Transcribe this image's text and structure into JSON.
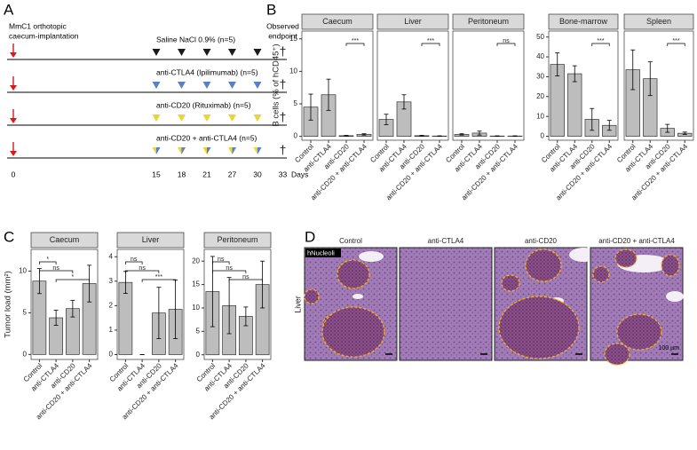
{
  "panel_labels": [
    "A",
    "B",
    "C",
    "D"
  ],
  "timeline": {
    "title_lines": [
      "MmC1 orthotopic",
      "caecum-implantation"
    ],
    "endpoint_lines": [
      "Observed",
      "endpoint"
    ],
    "endpoint_symbol": "†",
    "days": [
      0,
      15,
      18,
      21,
      27,
      30,
      33
    ],
    "days_label": "Days",
    "arrow_color": "#d7191c",
    "rows": [
      {
        "label": "Saline NaCl 0.9% (n=5)",
        "colors": [
          "#1a1a1a"
        ]
      },
      {
        "label": "anti-CTLA4 (Ipilimumab) (n=5)",
        "colors": [
          "#5b7fc7"
        ]
      },
      {
        "label": "anti-CD20 (Rituximab) (n=5)",
        "colors": [
          "#ecd531"
        ]
      },
      {
        "label": "anti-CD20 + anti-CTLA4 (n=5)",
        "colors": [
          "#ecd531",
          "#5b7fc7"
        ]
      }
    ]
  },
  "chart_data": [
    {
      "type": "bar",
      "y_label": "B cells (% of hCD45⁺)",
      "categories": [
        "Control",
        "anti-CTLA4",
        "anti-CD20",
        "anti-CD20 + anti-CTLA4"
      ],
      "bar_color": "#bdbdbd",
      "groups": [
        {
          "ylim": [
            -0.6,
            16.2
          ],
          "yticks": [
            0,
            5,
            10,
            15
          ],
          "facets": [
            {
              "title": "Caecum",
              "values": [
                4.5,
                6.4,
                0.1,
                0.3
              ],
              "errors": [
                2.0,
                2.4,
                0.05,
                0.1
              ],
              "comparisons": [
                {
                  "pair": [
                    2,
                    3
                  ],
                  "label": "***"
                }
              ]
            },
            {
              "title": "Liver",
              "values": [
                2.6,
                5.3,
                0.1,
                0.05
              ],
              "errors": [
                0.8,
                1.1,
                0.05,
                0.03
              ],
              "comparisons": [
                {
                  "pair": [
                    2,
                    3
                  ],
                  "label": "***"
                }
              ]
            },
            {
              "title": "Peritoneum",
              "values": [
                0.3,
                0.5,
                0.05,
                0.05
              ],
              "errors": [
                0.1,
                0.3,
                0.03,
                0.03
              ],
              "comparisons": [
                {
                  "pair": [
                    2,
                    3
                  ],
                  "label": "ns"
                }
              ]
            }
          ]
        },
        {
          "ylim": [
            -2,
            53
          ],
          "yticks": [
            0,
            10,
            20,
            30,
            40,
            50
          ],
          "facets": [
            {
              "title": "Bone-marrow",
              "values": [
                36.2,
                31.5,
                8.5,
                5.5
              ],
              "errors": [
                5.8,
                4.0,
                5.5,
                2.5
              ],
              "comparisons": [
                {
                  "pair": [
                    2,
                    3
                  ],
                  "label": "***"
                }
              ]
            },
            {
              "title": "Spleen",
              "values": [
                33.5,
                29.0,
                4.0,
                1.5
              ],
              "errors": [
                10.0,
                8.5,
                2.0,
                0.6
              ],
              "comparisons": [
                {
                  "pair": [
                    2,
                    3
                  ],
                  "label": "***"
                }
              ]
            }
          ]
        }
      ]
    },
    {
      "type": "bar",
      "y_label": "Tumor load (mm²)",
      "categories": [
        "Control",
        "anti-CTLA4",
        "anti-CD20",
        "anti-CD20 + anti-CTLA4"
      ],
      "bar_color": "#bdbdbd",
      "groups": [
        {
          "ylim": [
            -0.6,
            12.6
          ],
          "yticks": [
            0,
            5,
            10
          ],
          "facets": [
            {
              "title": "Caecum",
              "values": [
                8.8,
                4.4,
                5.5,
                8.5
              ],
              "errors": [
                1.5,
                0.9,
                1.0,
                2.2
              ],
              "comparisons": [
                {
                  "pair": [
                    1,
                    3
                  ],
                  "label": "*"
                },
                {
                  "pair": [
                    0,
                    2
                  ],
                  "label": "ns"
                },
                {
                  "pair": [
                    0,
                    1
                  ],
                  "label": "*"
                }
              ]
            }
          ]
        },
        {
          "ylim": [
            -0.2,
            4.3
          ],
          "yticks": [
            0,
            1,
            2,
            3,
            4
          ],
          "facets": [
            {
              "title": "Liver",
              "values": [
                2.95,
                0,
                1.7,
                1.85
              ],
              "errors": [
                0.45,
                0,
                1.05,
                1.2
              ],
              "comparisons": [
                {
                  "pair": [
                    1,
                    3
                  ],
                  "label": "***"
                },
                {
                  "pair": [
                    0,
                    2
                  ],
                  "label": "ns"
                },
                {
                  "pair": [
                    0,
                    1
                  ],
                  "label": "ns"
                }
              ]
            }
          ]
        },
        {
          "ylim": [
            -1,
            22.5
          ],
          "yticks": [
            0,
            5,
            10,
            15,
            20
          ],
          "facets": [
            {
              "title": "Peritoneum",
              "values": [
                13.5,
                10.5,
                8.2,
                15.0
              ],
              "errors": [
                7.5,
                6.0,
                2.0,
                5.0
              ],
              "comparisons": [
                {
                  "pair": [
                    1,
                    3
                  ],
                  "label": "ns"
                },
                {
                  "pair": [
                    0,
                    2
                  ],
                  "label": "ns"
                },
                {
                  "pair": [
                    0,
                    1
                  ],
                  "label": "ns"
                }
              ]
            }
          ]
        }
      ]
    }
  ],
  "histology": {
    "row_label": "Liver",
    "stain_label": "hNucleoli",
    "scale_label": "100 µm",
    "columns": [
      "Control",
      "anti-CTLA4",
      "anti-CD20",
      "anti-CD20 + anti-CTLA4"
    ]
  }
}
